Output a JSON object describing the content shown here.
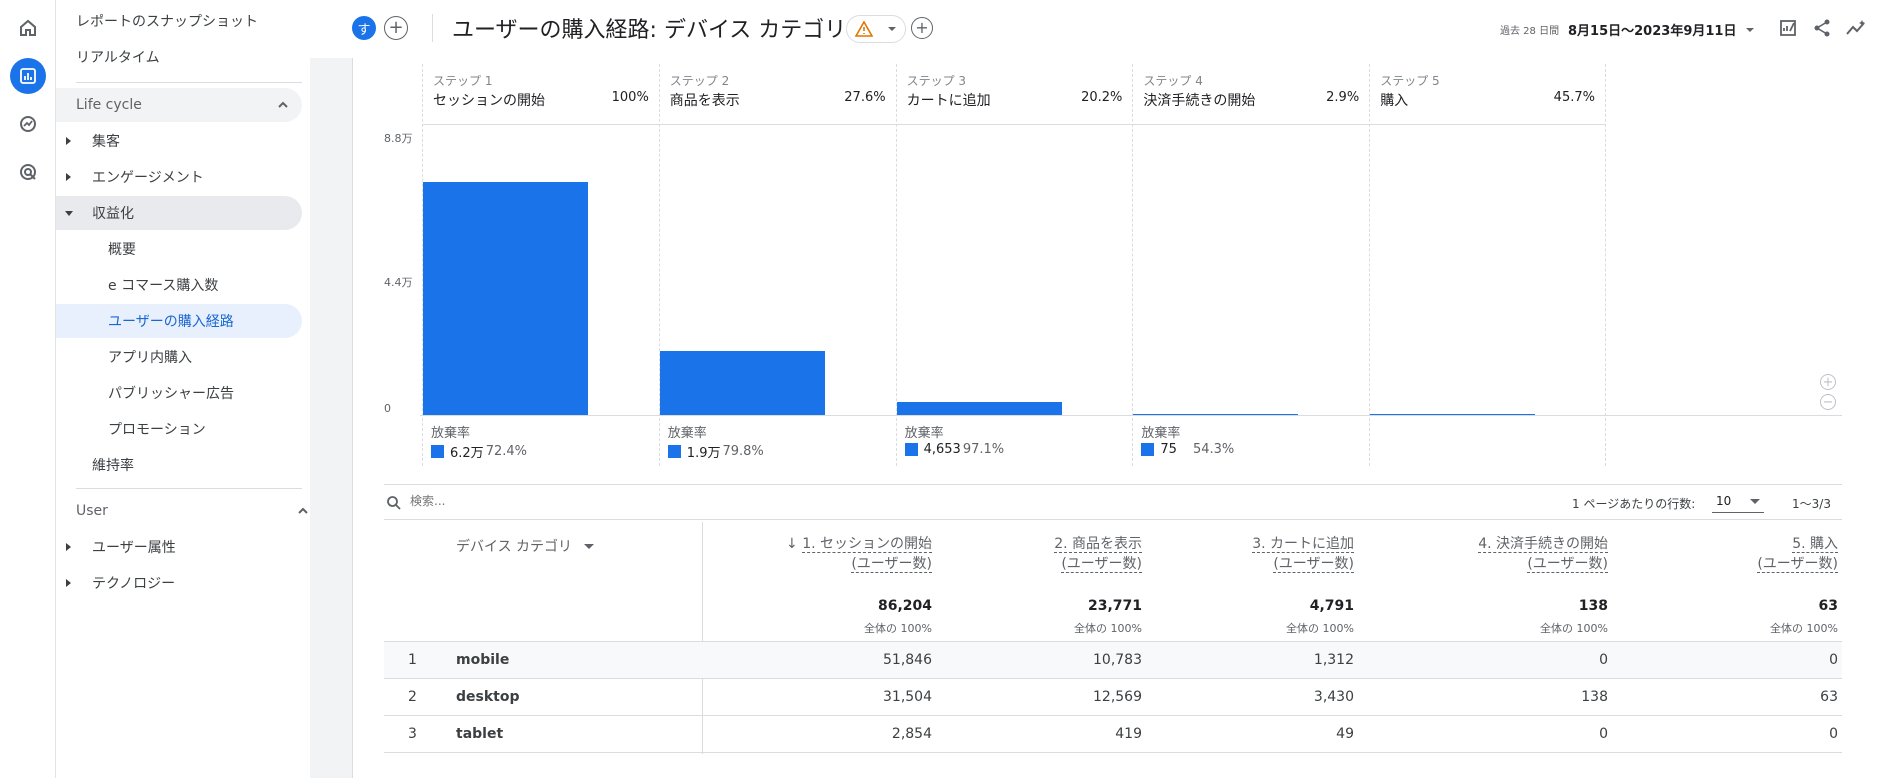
{
  "sidebar": {
    "snapshot": "レポートのスナップショット",
    "realtime": "リアルタイム",
    "lifecycle": "Life cycle",
    "acquisition": "集客",
    "engagement": "エンゲージメント",
    "monetization": "収益化",
    "overview": "概要",
    "ecommerce": "e コマース購入数",
    "purchase_journey": "ユーザーの購入経路",
    "in_app": "アプリ内購入",
    "publisher_ads": "パブリッシャー広告",
    "promotions": "プロモーション",
    "retention": "維持率",
    "user": "User",
    "user_attributes": "ユーザー属性",
    "technology": "テクノロジー"
  },
  "header": {
    "avatar": "す",
    "title": "ユーザーの購入経路: デバイス カテゴリ",
    "date_small": "過去 28 日間",
    "date_range": "8月15日～2023年9月11日"
  },
  "chart_data": {
    "type": "bar",
    "categories": [
      "セッションの開始",
      "商品を表示",
      "カートに追加",
      "決済手続きの開始",
      "購入"
    ],
    "step_labels": [
      "ステップ 1",
      "ステップ 2",
      "ステップ 3",
      "ステップ 4",
      "ステップ 5"
    ],
    "percents": [
      "100%",
      "27.6%",
      "20.2%",
      "2.9%",
      "45.7%"
    ],
    "values": [
      86204,
      23771,
      4791,
      138,
      63
    ],
    "yticks": [
      "8.8万",
      "4.4万",
      "0"
    ],
    "ylim": [
      0,
      88000
    ],
    "abandon_label": "放棄率",
    "abandon_counts": [
      "6.2万",
      "1.9万",
      "4,653",
      "75"
    ],
    "abandon_rates": [
      "72.4%",
      "79.8%",
      "97.1%",
      "54.3%"
    ]
  },
  "toolbar": {
    "search_placeholder": "検索...",
    "rows_label": "1 ページあたりの行数:",
    "rows_value": "10",
    "pager": "1～3/3"
  },
  "table": {
    "dim_header": "デバイス カテゴリ",
    "metrics": [
      {
        "line1": "1. セッションの開始",
        "line2": "(ユーザー数)",
        "total": "86,204",
        "sub": "全体の 100%"
      },
      {
        "line1": "2. 商品を表示",
        "line2": "(ユーザー数)",
        "total": "23,771",
        "sub": "全体の 100%"
      },
      {
        "line1": "3. カートに追加",
        "line2": "(ユーザー数)",
        "total": "4,791",
        "sub": "全体の 100%"
      },
      {
        "line1": "4. 決済手続きの開始",
        "line2": "(ユーザー数)",
        "total": "138",
        "sub": "全体の 100%"
      },
      {
        "line1": "5. 購入",
        "line2": "(ユーザー数)",
        "total": "63",
        "sub": "全体の 100%"
      }
    ],
    "rows": [
      {
        "idx": "1",
        "dim": "mobile",
        "vals": [
          "51,846",
          "10,783",
          "1,312",
          "0",
          "0"
        ]
      },
      {
        "idx": "2",
        "dim": "desktop",
        "vals": [
          "31,504",
          "12,569",
          "3,430",
          "138",
          "63"
        ]
      },
      {
        "idx": "3",
        "dim": "tablet",
        "vals": [
          "2,854",
          "419",
          "49",
          "0",
          "0"
        ]
      }
    ]
  },
  "colors": {
    "accent": "#1a73e8",
    "warning": "#e37400"
  }
}
